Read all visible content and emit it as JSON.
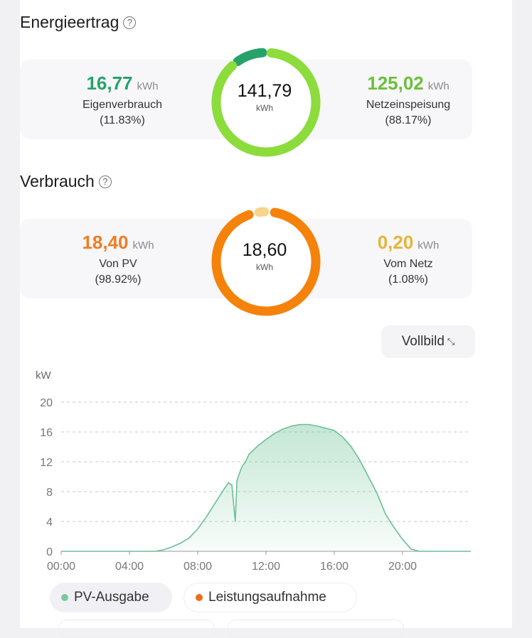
{
  "yield": {
    "title": "Energieertrag",
    "total_value": "141,79",
    "total_unit": "kWh",
    "self_consumption": {
      "value": "16,77",
      "unit": "kWh",
      "label": "Eigenverbrauch",
      "percent": "(11.83%)",
      "fraction": 0.1183
    },
    "feed_in": {
      "value": "125,02",
      "unit": "kWh",
      "label": "Netzeinspeisung",
      "percent": "(88.17%)",
      "fraction": 0.8817
    },
    "colors": {
      "self": "#27a36a",
      "feed": "#8cdc3c"
    }
  },
  "consumption": {
    "title": "Verbrauch",
    "total_value": "18,60",
    "total_unit": "kWh",
    "from_pv": {
      "value": "18,40",
      "unit": "kWh",
      "label": "Von PV",
      "percent": "(98.92%)",
      "fraction": 0.9892
    },
    "from_grid": {
      "value": "0,20",
      "unit": "kWh",
      "label": "Vom Netz",
      "percent": "(1.08%)",
      "fraction": 0.0108
    },
    "colors": {
      "pv": "#f5820a",
      "grid": "#f6d58c"
    }
  },
  "fullscreen_label": "Vollbild",
  "legend": {
    "pv": "PV-Ausgabe",
    "load": "Leistungsaufnahme",
    "pv_color": "#7cc9a0",
    "load_color": "#f06a1c"
  },
  "chart_data": {
    "type": "area",
    "ylabel": "kW",
    "ylim": [
      0,
      20
    ],
    "yticks": [
      "0",
      "4",
      "8",
      "12",
      "16",
      "20"
    ],
    "xticks": [
      "00:00",
      "04:00",
      "08:00",
      "12:00",
      "16:00",
      "20:00"
    ],
    "xlim_hours": [
      0,
      24
    ],
    "grid": true,
    "series": [
      {
        "name": "PV-Ausgabe",
        "x": [
          0,
          5.5,
          6,
          6.5,
          7,
          7.5,
          8,
          8.5,
          9,
          9.5,
          9.8,
          10.0,
          10.2,
          10.3,
          10.5,
          10.6,
          10.8,
          11,
          11.5,
          12,
          12.5,
          13,
          13.5,
          14,
          14.5,
          15,
          15.5,
          16,
          16.5,
          17,
          17.5,
          18,
          18.5,
          19,
          19.5,
          20,
          20.5,
          21,
          21.5,
          24
        ],
        "y": [
          0,
          0,
          0.2,
          0.6,
          1.1,
          1.8,
          3.0,
          4.6,
          6.4,
          8.2,
          9.2,
          8.9,
          4.0,
          9.5,
          10.8,
          11.4,
          12.0,
          13.0,
          14.1,
          15.0,
          15.8,
          16.4,
          16.8,
          17.0,
          17.0,
          16.8,
          16.5,
          16.2,
          15.3,
          14.0,
          12.2,
          10.0,
          7.8,
          5.0,
          3.2,
          1.6,
          0.3,
          0.0,
          0,
          0
        ]
      }
    ]
  }
}
